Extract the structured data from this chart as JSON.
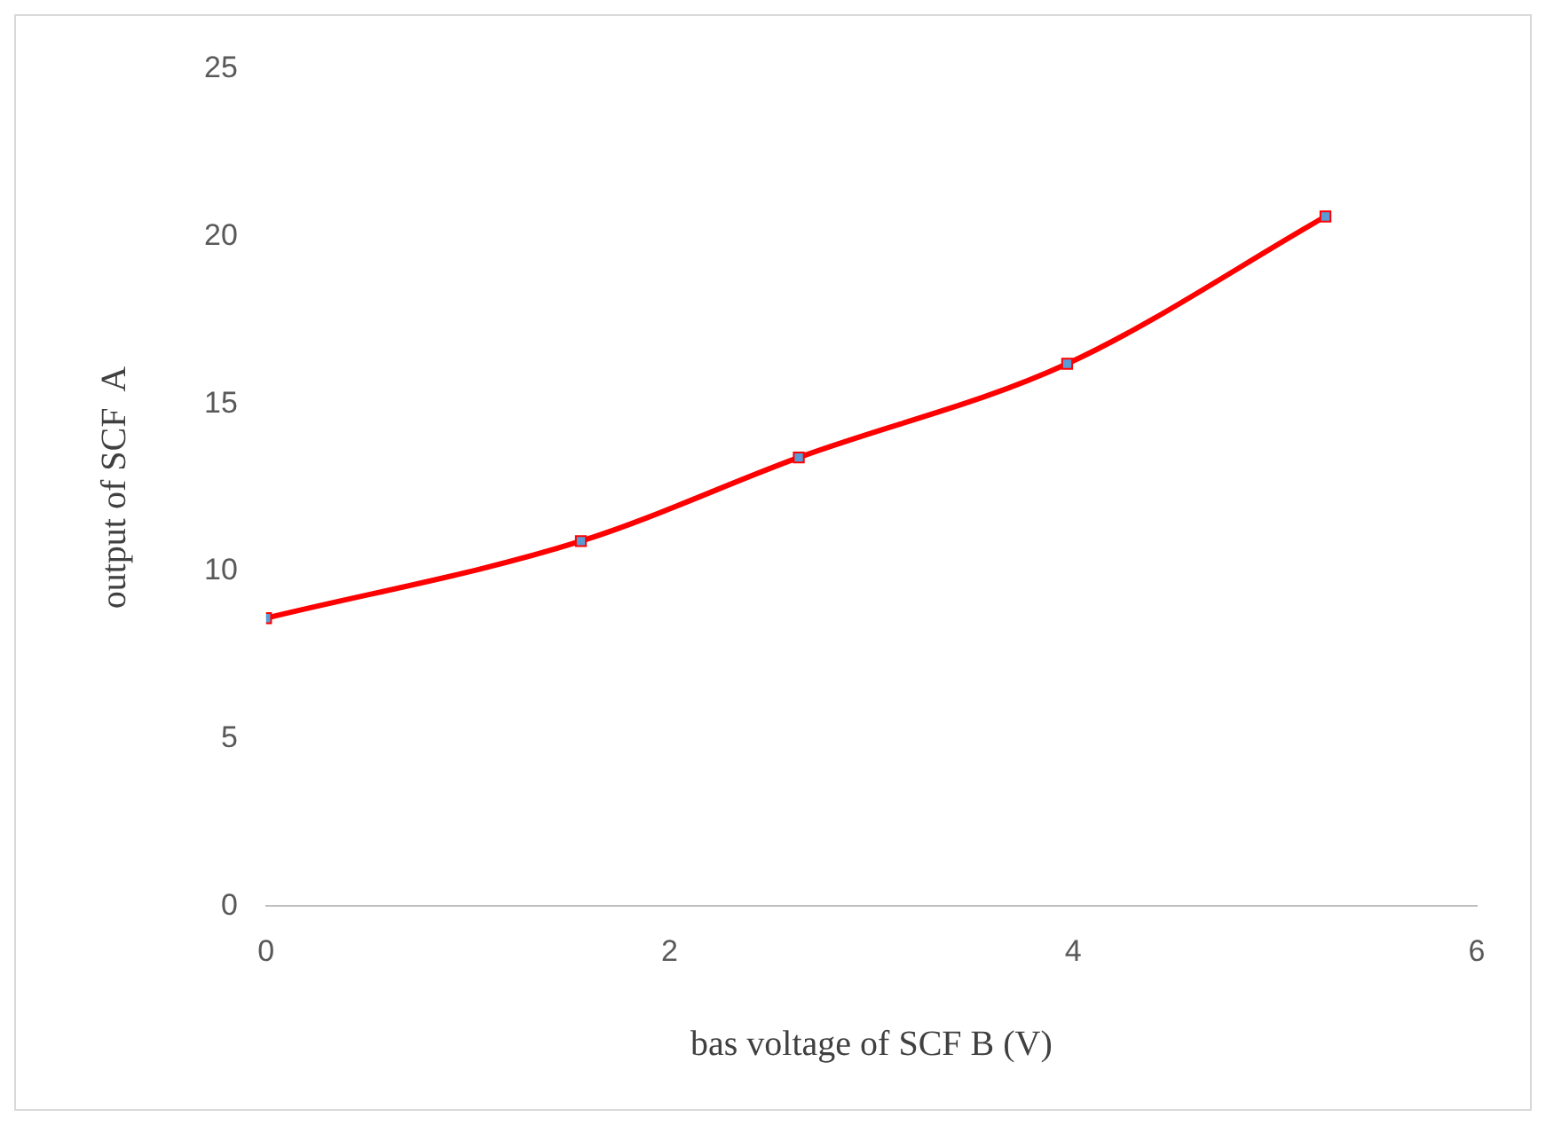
{
  "chart_data": {
    "type": "line",
    "xlabel": "bas voltage of SCF B (V)",
    "ylabel": "output of SCF  A",
    "x": [
      0,
      1.56,
      2.64,
      3.97,
      5.25
    ],
    "series": [
      {
        "color": "#ff0000",
        "colors": [
          "#5b9bd5",
          "#5b9bd5",
          "#5b9bd5",
          "#5b9bd5",
          "#5b9bd5"
        ],
        "values": [
          8.6,
          10.9,
          13.4,
          16.2,
          20.6
        ]
      }
    ],
    "xlim": [
      0,
      6
    ],
    "xticks": [
      0,
      2,
      4,
      6
    ],
    "ylim": [
      0,
      25
    ],
    "yticks": [
      0,
      5,
      10,
      15,
      20,
      25
    ],
    "grid": false,
    "legend": false,
    "marker": "square",
    "line_style": "solid"
  }
}
